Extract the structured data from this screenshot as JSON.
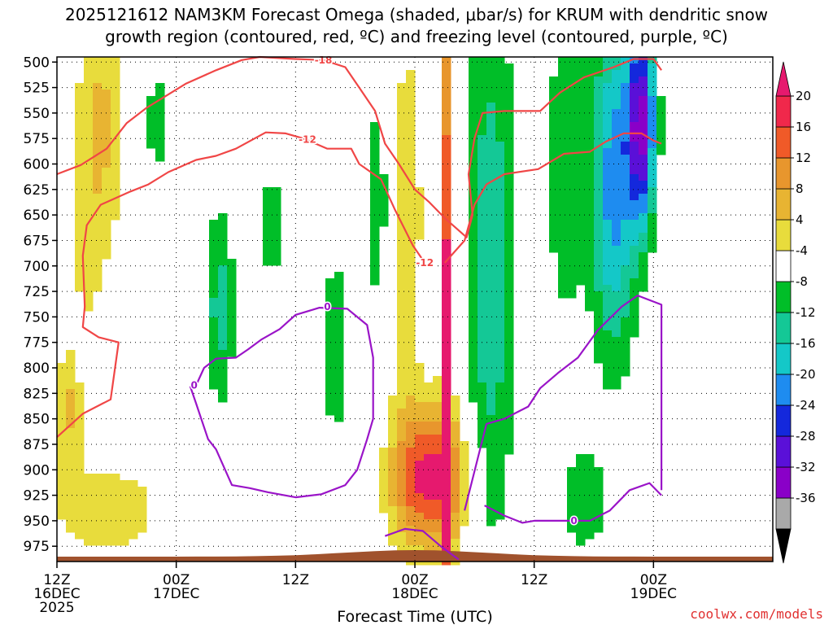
{
  "chart_data": {
    "type": "heatmap",
    "title_line1": "2025121612 NAM3KM Forecast Omega (shaded, μbar/s) for KRUM with dendritic snow",
    "title_line2": "growth region (contoured, red, ºC) and freezing level (contoured, purple, ºC)",
    "xlabel": "Forecast Time (UTC)",
    "credit": "coolwx.com/models",
    "x_range_hours": [
      0,
      36
    ],
    "y_levels_hpa": [
      "500",
      "525",
      "550",
      "575",
      "600",
      "625",
      "650",
      "675",
      "700",
      "725",
      "750",
      "775",
      "800",
      "825",
      "850",
      "875",
      "900",
      "925",
      "950",
      "975"
    ],
    "y_range_hpa": [
      495,
      990
    ],
    "x_ticks": [
      {
        "hour": 0,
        "line1": "12Z",
        "line2": "16DEC",
        "line3": "2025"
      },
      {
        "hour": 6,
        "line1": "00Z",
        "line2": "17DEC",
        "line3": ""
      },
      {
        "hour": 12,
        "line1": "12Z",
        "line2": "",
        "line3": ""
      },
      {
        "hour": 18,
        "line1": "00Z",
        "line2": "18DEC",
        "line3": ""
      },
      {
        "hour": 24,
        "line1": "12Z",
        "line2": "",
        "line3": ""
      },
      {
        "hour": 30,
        "line1": "00Z",
        "line2": "19DEC",
        "line3": ""
      }
    ],
    "colorbar": {
      "bounds": [
        -36,
        -32,
        -28,
        -24,
        -20,
        -16,
        -12,
        -8,
        -4,
        4,
        8,
        12,
        16,
        20
      ],
      "labels": [
        "20",
        "16",
        "12",
        "8",
        "4",
        "-4",
        "-8",
        "-12",
        "-16",
        "-20",
        "-24",
        "-28",
        "-32",
        "-36"
      ],
      "colors": [
        "#a9a9a9",
        "#8a00c8",
        "#5a10d8",
        "#1428dc",
        "#1e8cf0",
        "#14c8c8",
        "#14c896",
        "#00be28",
        "#ffffff",
        "#e8dc3c",
        "#e8b432",
        "#e8962d",
        "#f05a28",
        "#f0284b"
      ],
      "under_color": "#000000",
      "over_color": "#e6196e"
    },
    "contour_labels": [
      {
        "text": "-18",
        "hour": 13.4,
        "hpa": 498,
        "series": "dgz"
      },
      {
        "text": "-12",
        "hour": 12.6,
        "hpa": 576,
        "series": "dgz"
      },
      {
        "text": "-12",
        "hour": 18.5,
        "hpa": 697,
        "series": "dgz"
      },
      {
        "text": "0",
        "hour": 13.6,
        "hpa": 740,
        "series": "freezing"
      },
      {
        "text": "0",
        "hour": 6.9,
        "hpa": 817,
        "series": "freezing"
      },
      {
        "text": "0",
        "hour": 26.0,
        "hpa": 950,
        "series": "freezing"
      }
    ],
    "series": [
      {
        "name": "dgz_-18C",
        "color": "#f04646",
        "points": [
          [
            0,
            610
          ],
          [
            1.2,
            601
          ],
          [
            2.5,
            585
          ],
          [
            3.5,
            560
          ],
          [
            4.5,
            545
          ],
          [
            6.5,
            521
          ],
          [
            8,
            508
          ],
          [
            9.3,
            498
          ],
          [
            10.2,
            495
          ],
          [
            12,
            497
          ],
          [
            13.4,
            498
          ],
          [
            14.5,
            505
          ],
          [
            15.2,
            525
          ],
          [
            16,
            548
          ],
          [
            16.5,
            580
          ],
          [
            17.2,
            600
          ],
          [
            18,
            625
          ],
          [
            18.7,
            637
          ],
          [
            19.5,
            653
          ],
          [
            20.6,
            672
          ],
          [
            20.9,
            650
          ],
          [
            20.7,
            610
          ],
          [
            21,
            575
          ],
          [
            21.4,
            550
          ],
          [
            22.5,
            548
          ],
          [
            24.3,
            548
          ],
          [
            25.3,
            530
          ],
          [
            26.5,
            515
          ],
          [
            28,
            505
          ],
          [
            29,
            497
          ],
          [
            30,
            497
          ],
          [
            30.4,
            508
          ]
        ]
      },
      {
        "name": "dgz_-12C",
        "color": "#f04646",
        "points": [
          [
            0,
            868
          ],
          [
            1.3,
            845
          ],
          [
            2.7,
            831
          ],
          [
            3.1,
            775
          ],
          [
            2.1,
            770
          ],
          [
            1.3,
            760
          ],
          [
            1.4,
            740
          ],
          [
            1.3,
            690
          ],
          [
            1.5,
            660
          ],
          [
            2.2,
            640
          ],
          [
            3.7,
            627
          ],
          [
            4.6,
            620
          ],
          [
            5.6,
            608
          ],
          [
            7,
            596
          ],
          [
            8,
            592
          ],
          [
            9,
            585
          ],
          [
            10.5,
            569
          ],
          [
            11.5,
            570
          ],
          [
            12.4,
            575
          ],
          [
            13.6,
            585
          ],
          [
            14.8,
            585
          ],
          [
            15.2,
            600
          ],
          [
            16.3,
            615
          ],
          [
            17,
            645
          ],
          [
            17.9,
            680
          ],
          [
            18.5,
            697
          ]
        ]
      },
      {
        "name": "dgz_-12C_east",
        "color": "#f04646",
        "points": [
          [
            19.5,
            697
          ],
          [
            20.5,
            675
          ],
          [
            21,
            640
          ],
          [
            21.6,
            620
          ],
          [
            22.5,
            610
          ],
          [
            24.2,
            605
          ],
          [
            25.5,
            590
          ],
          [
            26.8,
            588
          ],
          [
            27.6,
            578
          ],
          [
            28.5,
            570
          ],
          [
            29.4,
            570
          ],
          [
            30,
            577
          ],
          [
            30.4,
            580
          ]
        ]
      },
      {
        "name": "freezing_0C",
        "color": "#9a14c8",
        "points": [
          [
            7,
            817
          ],
          [
            7.4,
            800
          ],
          [
            8,
            791
          ],
          [
            9,
            790
          ],
          [
            9.6,
            782
          ],
          [
            10.3,
            772
          ],
          [
            11.2,
            762
          ],
          [
            12,
            748
          ],
          [
            13.2,
            741
          ],
          [
            14.6,
            742
          ],
          [
            15.6,
            758
          ],
          [
            15.9,
            790
          ],
          [
            15.9,
            850
          ],
          [
            15.6,
            870
          ],
          [
            15.1,
            900
          ],
          [
            14.5,
            915
          ],
          [
            13.3,
            924
          ],
          [
            12,
            927
          ],
          [
            10.6,
            922
          ],
          [
            9.7,
            918
          ],
          [
            8.8,
            915
          ],
          [
            8,
            880
          ],
          [
            7.6,
            870
          ],
          [
            7,
            835
          ],
          [
            6.7,
            818
          ]
        ]
      },
      {
        "name": "freezing_0C_east",
        "color": "#9a14c8",
        "points": [
          [
            16.5,
            965
          ],
          [
            17.5,
            958
          ],
          [
            18.4,
            960
          ],
          [
            19.3,
            975
          ],
          [
            20.2,
            988
          ]
        ]
      },
      {
        "name": "freezing_0C_east2",
        "color": "#9a14c8",
        "points": [
          [
            20.5,
            940
          ],
          [
            21.6,
            855
          ],
          [
            22.5,
            850
          ],
          [
            23.7,
            838
          ],
          [
            24.3,
            820
          ],
          [
            25.2,
            805
          ],
          [
            26.2,
            790
          ],
          [
            27.2,
            763
          ],
          [
            28.4,
            740
          ],
          [
            29.2,
            729
          ],
          [
            30.4,
            738
          ],
          [
            30.4,
            920
          ]
        ]
      },
      {
        "name": "freezing_0C_east3",
        "color": "#9a14c8",
        "points": [
          [
            21.5,
            935
          ],
          [
            22.5,
            945
          ],
          [
            23.4,
            952
          ],
          [
            24,
            950
          ],
          [
            25.3,
            950
          ],
          [
            26.8,
            950
          ],
          [
            27.8,
            940
          ],
          [
            28.8,
            920
          ],
          [
            29.8,
            913
          ],
          [
            30.4,
            925
          ]
        ]
      }
    ],
    "omega_field": [
      {
        "hour": 2.2,
        "hpa": 560,
        "sx": 0.9,
        "sy": 90,
        "value": 9
      },
      {
        "hour": 1.5,
        "hpa": 700,
        "sx": 0.6,
        "sy": 60,
        "value": 4
      },
      {
        "hour": 5.0,
        "hpa": 560,
        "sx": 0.4,
        "sy": 50,
        "value": -6
      },
      {
        "hour": 8.2,
        "hpa": 740,
        "sx": 0.5,
        "sy": 70,
        "value": -10
      },
      {
        "hour": 10.8,
        "hpa": 660,
        "sx": 0.3,
        "sy": 50,
        "value": -7
      },
      {
        "hour": 14.0,
        "hpa": 780,
        "sx": 0.4,
        "sy": 70,
        "value": -8
      },
      {
        "hour": 16.2,
        "hpa": 640,
        "sx": 0.4,
        "sy": 120,
        "value": -6
      },
      {
        "hour": 17.6,
        "hpa": 650,
        "sx": 0.6,
        "sy": 140,
        "value": 7
      },
      {
        "hour": 19.6,
        "hpa": 760,
        "sx": 0.2,
        "sy": 250,
        "value": 22
      },
      {
        "hour": 19.2,
        "hpa": 910,
        "sx": 1.2,
        "sy": 45,
        "value": 15
      },
      {
        "hour": 21.8,
        "hpa": 700,
        "sx": 0.9,
        "sy": 200,
        "value": -11
      },
      {
        "hour": 25.6,
        "hpa": 600,
        "sx": 0.7,
        "sy": 110,
        "value": -8
      },
      {
        "hour": 28.0,
        "hpa": 620,
        "sx": 0.8,
        "sy": 120,
        "value": -18
      },
      {
        "hour": 29.4,
        "hpa": 560,
        "sx": 0.5,
        "sy": 70,
        "value": -28
      },
      {
        "hour": 26.5,
        "hpa": 930,
        "sx": 0.9,
        "sy": 35,
        "value": -8
      },
      {
        "hour": 2.5,
        "hpa": 940,
        "sx": 2.4,
        "sy": 40,
        "value": 6
      },
      {
        "hour": 0.5,
        "hpa": 840,
        "sx": 0.5,
        "sy": 40,
        "value": 9
      },
      {
        "hour": 18.0,
        "hpa": 905,
        "sx": 1.2,
        "sy": 55,
        "value": 10
      },
      {
        "hour": 28.0,
        "hpa": 880,
        "sx": 0.4,
        "sy": 25,
        "value": 6
      }
    ]
  }
}
